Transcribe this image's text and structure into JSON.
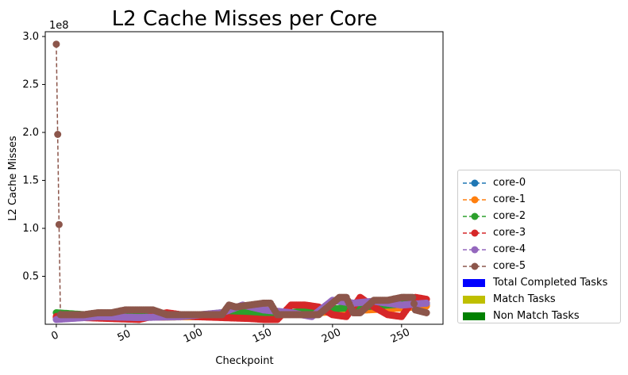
{
  "chart_data": {
    "type": "line",
    "title": "L2 Cache Misses per Core",
    "xlabel": "Checkpoint",
    "ylabel": "L2 Cache Misses",
    "y_offset_label": "1e8",
    "y_scale": 100000000,
    "xlim": [
      -8,
      280
    ],
    "ylim": [
      0.0,
      3.05
    ],
    "x_ticks": [
      0,
      50,
      100,
      150,
      200,
      250
    ],
    "y_ticks": [
      0.5,
      1.0,
      1.5,
      2.0,
      2.5,
      3.0
    ],
    "y_tick_labels": [
      "0.5",
      "1.0",
      "1.5",
      "2.0",
      "2.5",
      "3.0"
    ],
    "grid": false,
    "legend_position": "lower-right, outside plot",
    "series": [
      {
        "name": "core-0",
        "color": "#1f77b4",
        "x": [
          0,
          50,
          100,
          150,
          200,
          250,
          268
        ],
        "y": [
          0.07,
          0.07,
          0.08,
          0.1,
          0.14,
          0.18,
          0.2
        ]
      },
      {
        "name": "core-1",
        "color": "#ff7f0e",
        "x": [
          0,
          50,
          100,
          150,
          200,
          250,
          268
        ],
        "y": [
          0.07,
          0.07,
          0.08,
          0.09,
          0.13,
          0.17,
          0.19
        ]
      },
      {
        "name": "core-2",
        "color": "#2ca02c",
        "x": [
          0,
          20,
          50,
          80,
          100,
          120,
          140,
          160,
          180,
          200,
          220,
          240,
          260,
          268
        ],
        "y": [
          0.12,
          0.1,
          0.09,
          0.08,
          0.09,
          0.12,
          0.12,
          0.1,
          0.14,
          0.16,
          0.18,
          0.2,
          0.22,
          0.22
        ]
      },
      {
        "name": "core-3",
        "color": "#d62728",
        "x": [
          0,
          20,
          40,
          60,
          80,
          100,
          120,
          140,
          150,
          160,
          170,
          180,
          190,
          200,
          210,
          220,
          230,
          240,
          250,
          260,
          268
        ],
        "y": [
          0.08,
          0.07,
          0.06,
          0.05,
          0.12,
          0.08,
          0.07,
          0.06,
          0.05,
          0.05,
          0.2,
          0.2,
          0.18,
          0.1,
          0.08,
          0.28,
          0.18,
          0.1,
          0.08,
          0.28,
          0.26
        ]
      },
      {
        "name": "core-4",
        "color": "#9467bd",
        "x": [
          0,
          30,
          60,
          90,
          120,
          135,
          150,
          170,
          185,
          200,
          215,
          230,
          250,
          268
        ],
        "y": [
          0.05,
          0.08,
          0.07,
          0.08,
          0.12,
          0.2,
          0.15,
          0.12,
          0.08,
          0.25,
          0.22,
          0.24,
          0.2,
          0.22
        ]
      },
      {
        "name": "core-5",
        "color": "#8c564b",
        "x": [
          0,
          3,
          10,
          20,
          30,
          40,
          50,
          60,
          70,
          80,
          90,
          100,
          110,
          120,
          125,
          130,
          140,
          150,
          155,
          160,
          170,
          180,
          190,
          200,
          205,
          210,
          215,
          220,
          230,
          240,
          250,
          258,
          260,
          268
        ],
        "y": [
          2.92,
          0.1,
          0.1,
          0.1,
          0.12,
          0.12,
          0.15,
          0.15,
          0.15,
          0.1,
          0.1,
          0.1,
          0.1,
          0.1,
          0.2,
          0.18,
          0.2,
          0.22,
          0.22,
          0.1,
          0.1,
          0.1,
          0.1,
          0.22,
          0.28,
          0.28,
          0.12,
          0.12,
          0.25,
          0.25,
          0.28,
          0.28,
          0.15,
          0.12
        ]
      }
    ],
    "bar_legend": [
      {
        "name": "Total Completed Tasks",
        "color": "#0000ff"
      },
      {
        "name": "Match Tasks",
        "color": "#bfbf00"
      },
      {
        "name": "Non Match Tasks",
        "color": "#008000"
      }
    ]
  }
}
